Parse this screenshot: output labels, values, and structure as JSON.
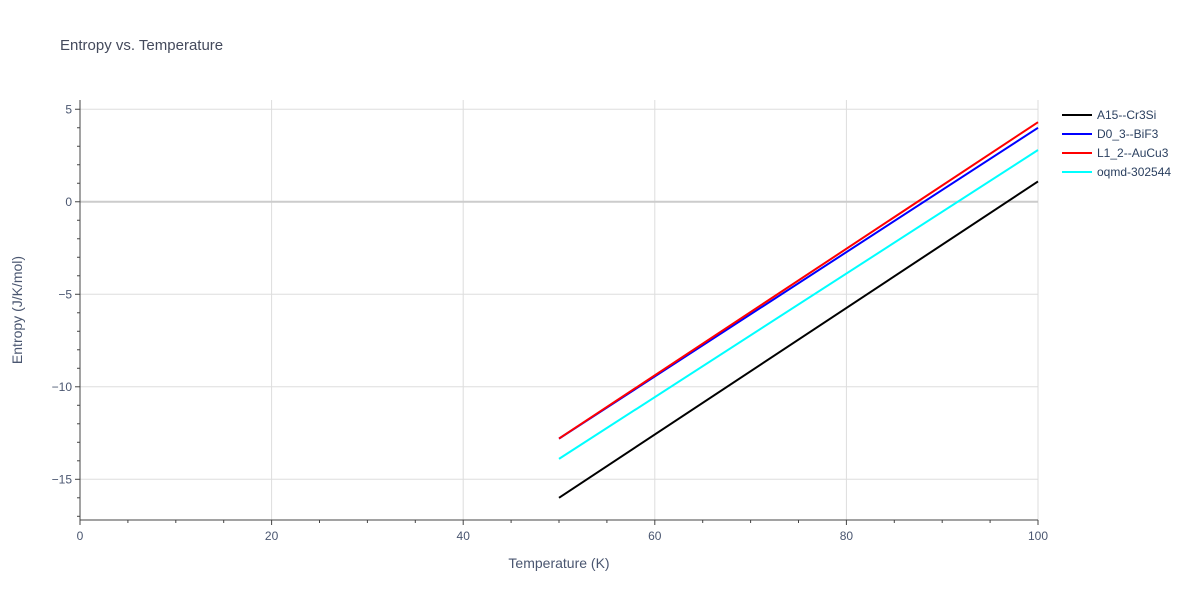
{
  "chart_data": {
    "type": "line",
    "title": "Entropy vs. Temperature",
    "xlabel": "Temperature (K)",
    "ylabel": "Entropy (J/K/mol)",
    "xlim": [
      0,
      100
    ],
    "ylim": [
      -17.2,
      5.5
    ],
    "x_ticks": [
      0,
      20,
      40,
      60,
      80,
      100
    ],
    "y_ticks": [
      -15,
      -10,
      -5,
      0,
      5
    ],
    "y_tick_labels": [
      "−15",
      "−10",
      "−5",
      "0",
      "5"
    ],
    "grid": true,
    "legend_position": "right",
    "series": [
      {
        "name": "A15--Cr3Si",
        "color": "#000000",
        "x": [
          50,
          100
        ],
        "y": [
          -16.0,
          1.1
        ]
      },
      {
        "name": "D0_3--BiF3",
        "color": "#0000ff",
        "x": [
          50,
          100
        ],
        "y": [
          -12.8,
          4.0
        ]
      },
      {
        "name": "L1_2--AuCu3",
        "color": "#ff0000",
        "x": [
          50,
          100
        ],
        "y": [
          -12.8,
          4.3
        ]
      },
      {
        "name": "oqmd-302544",
        "color": "#00ffff",
        "x": [
          50,
          100
        ],
        "y": [
          -13.9,
          2.8
        ]
      }
    ]
  }
}
